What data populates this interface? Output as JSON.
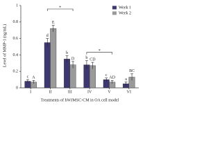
{
  "chart_data": {
    "type": "bar",
    "y_label": "Level of MMP-1 (ng/mL)",
    "x_label": "Treatments of hWJMSC-CM in OA cell model",
    "categories": [
      "I",
      "II",
      "III",
      "IV",
      "V",
      "VI"
    ],
    "series": [
      {
        "name": "Week 1",
        "color": "#3d3870",
        "values": [
          0.08,
          0.55,
          0.35,
          0.28,
          0.1,
          0.05
        ],
        "errors": [
          0.02,
          0.05,
          0.04,
          0.05,
          0.02,
          0.02
        ],
        "letters": [
          "c",
          "d",
          "b",
          "b",
          "c",
          "a"
        ]
      },
      {
        "name": "Week 2",
        "color": "#9a9a9a",
        "values": [
          0.07,
          0.72,
          0.28,
          0.27,
          0.07,
          0.13
        ],
        "errors": [
          0.02,
          0.04,
          0.04,
          0.04,
          0.02,
          0.04
        ],
        "letters": [
          "A",
          "E",
          "D",
          "CD",
          "AD",
          "BC"
        ]
      }
    ],
    "comparisons": [
      {
        "from": "II",
        "to": "III",
        "label": "*"
      },
      {
        "from": "IV",
        "to": "V",
        "label": "*"
      }
    ],
    "ylim": [
      0,
      1
    ],
    "yticks": [
      0,
      0.2,
      0.4,
      0.6,
      0.8,
      1
    ],
    "legend": "top-right"
  }
}
